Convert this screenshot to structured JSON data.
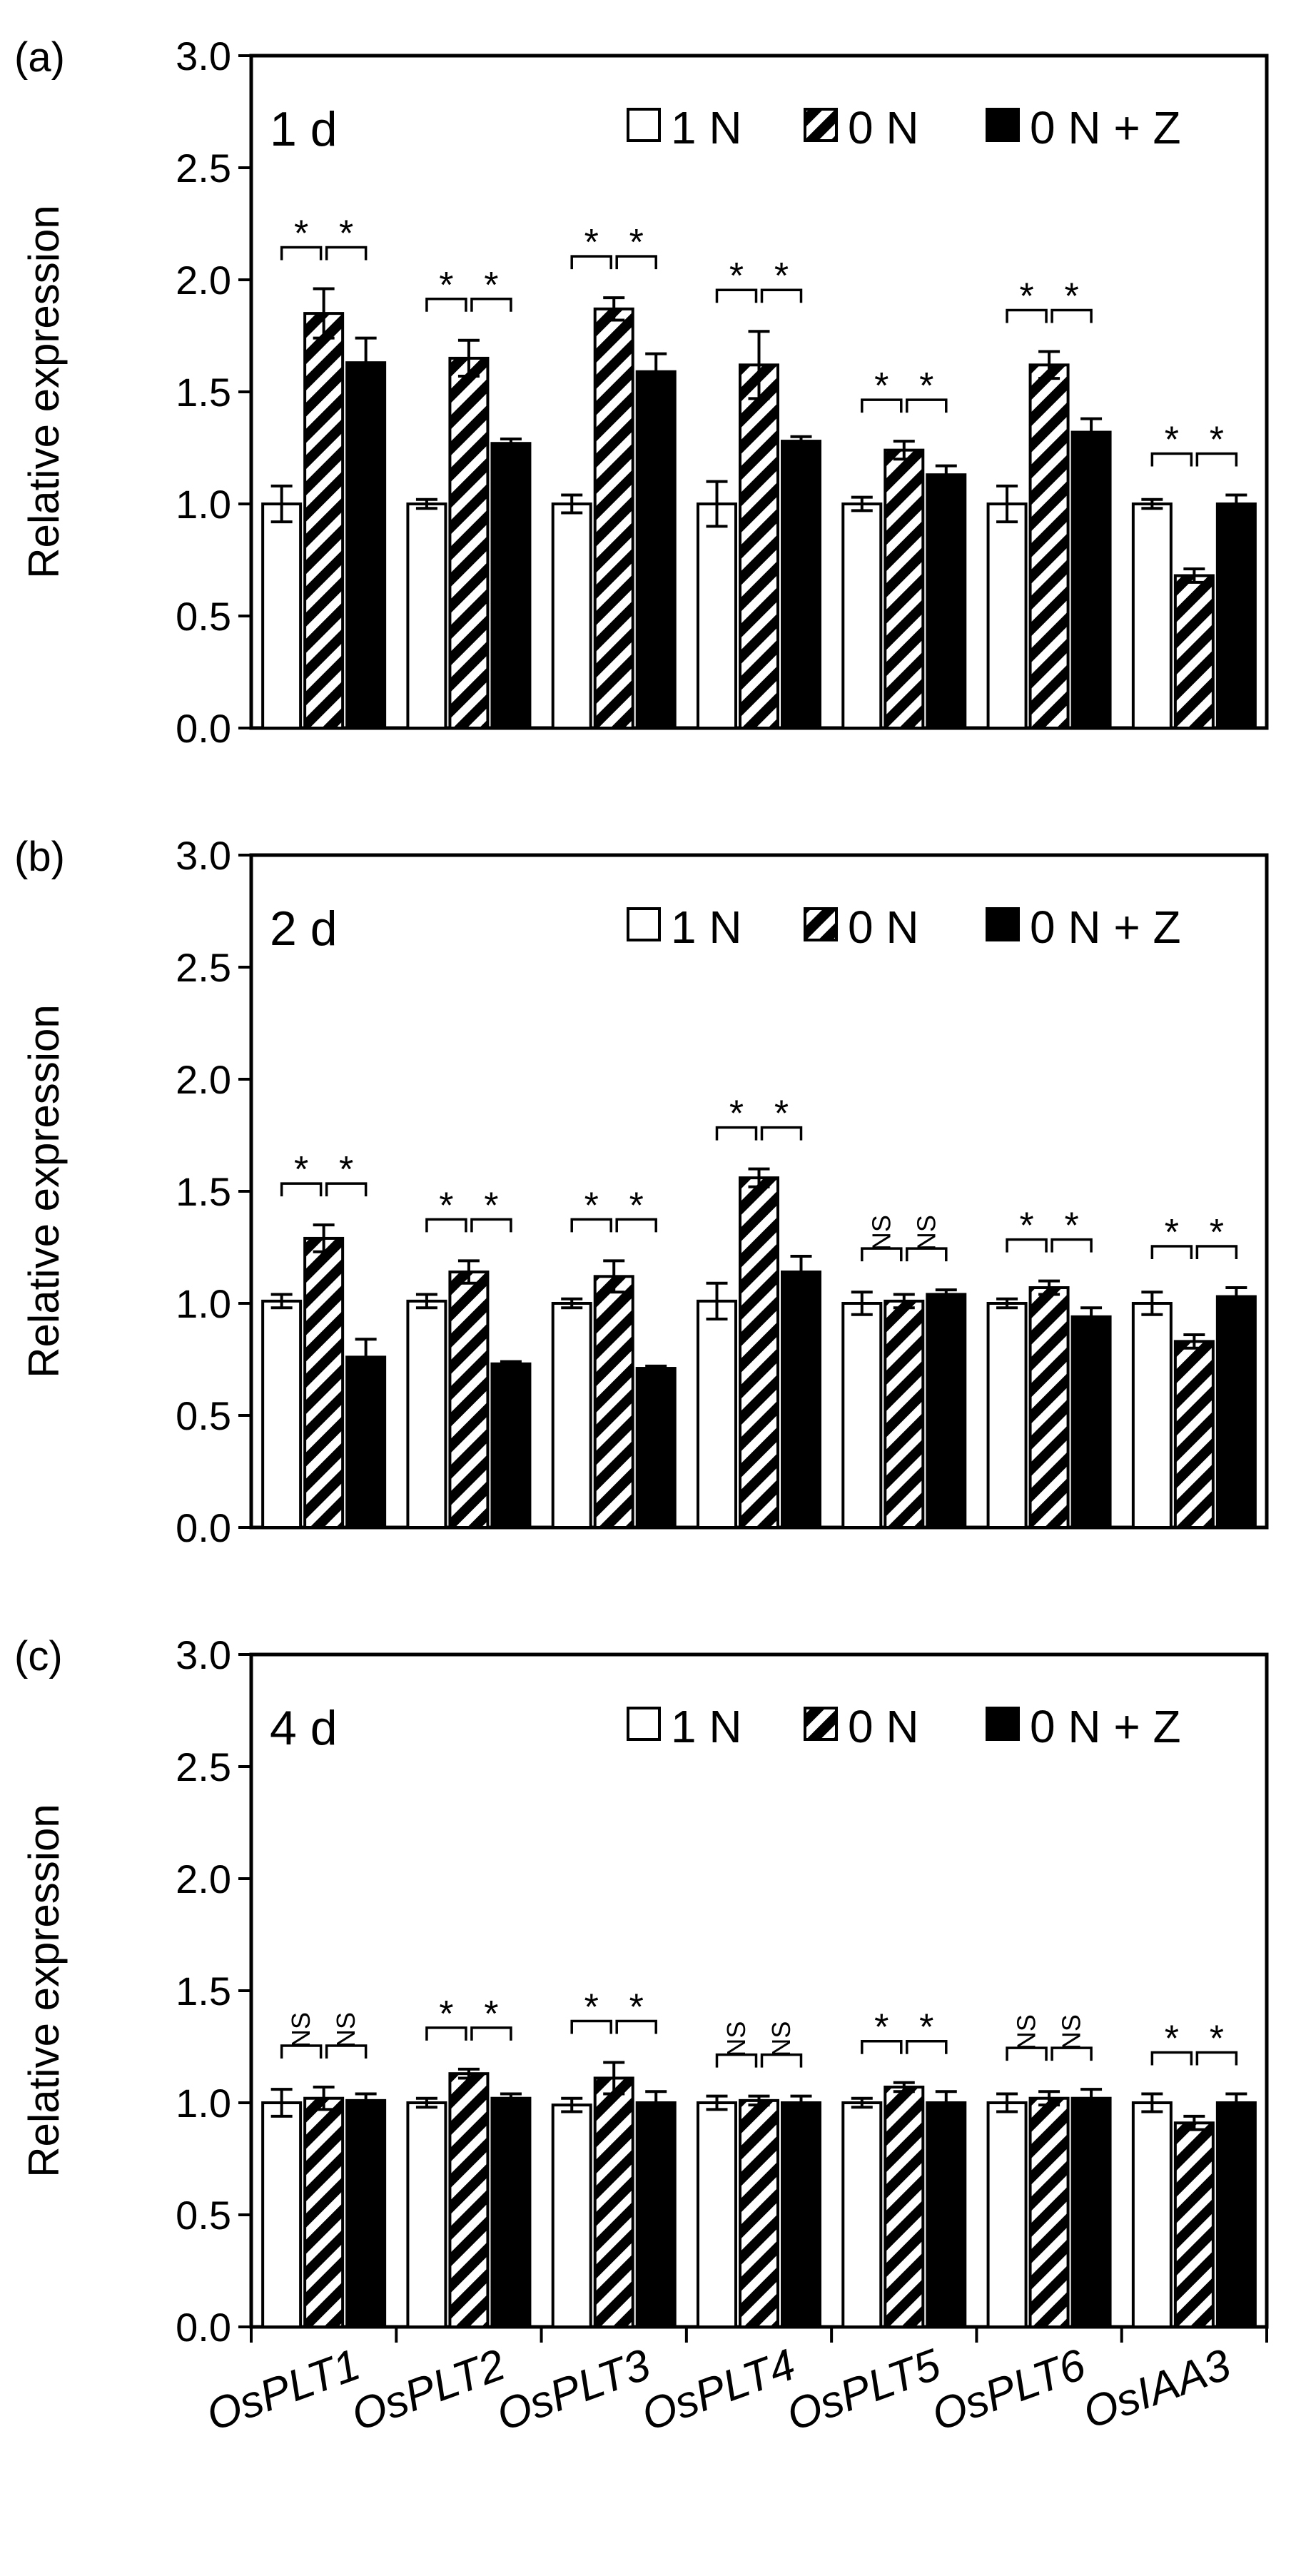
{
  "chart_data": [
    {
      "type": "bar",
      "panel_label": "(a)",
      "day_label": "1 d",
      "ylabel": "Relative expression",
      "ylim": [
        0,
        3.0
      ],
      "yticks": [
        "0.0",
        "0.5",
        "1.0",
        "1.5",
        "2.0",
        "2.5",
        "3.0"
      ],
      "categories": [
        "OsPLT1",
        "OsPLT2",
        "OsPLT3",
        "OsPLT4",
        "OsPLT5",
        "OsPLT6",
        "OsIAA3"
      ],
      "series": [
        {
          "name": "1 N",
          "values": [
            1.0,
            1.0,
            1.0,
            1.0,
            1.0,
            1.0,
            1.0
          ],
          "errors": [
            0.08,
            0.02,
            0.04,
            0.1,
            0.03,
            0.08,
            0.02
          ]
        },
        {
          "name": "0 N",
          "values": [
            1.85,
            1.65,
            1.87,
            1.62,
            1.24,
            1.62,
            0.68
          ],
          "errors": [
            0.11,
            0.08,
            0.05,
            0.15,
            0.04,
            0.06,
            0.03
          ]
        },
        {
          "name": "0 N + Z",
          "values": [
            1.63,
            1.27,
            1.59,
            1.28,
            1.13,
            1.32,
            1.0
          ],
          "errors": [
            0.11,
            0.02,
            0.08,
            0.02,
            0.04,
            0.06,
            0.04
          ]
        }
      ],
      "significance": [
        [
          "*",
          "*"
        ],
        [
          "*",
          "*"
        ],
        [
          "*",
          "*"
        ],
        [
          "*",
          "*"
        ],
        [
          "*",
          "*"
        ],
        [
          "*",
          "*"
        ],
        [
          "*",
          "*"
        ]
      ]
    },
    {
      "type": "bar",
      "panel_label": "(b)",
      "day_label": "2 d",
      "ylabel": "Relative expression",
      "ylim": [
        0,
        3.0
      ],
      "yticks": [
        "0.0",
        "0.5",
        "1.0",
        "1.5",
        "2.0",
        "2.5",
        "3.0"
      ],
      "categories": [
        "OsPLT1",
        "OsPLT2",
        "OsPLT3",
        "OsPLT4",
        "OsPLT5",
        "OsPLT6",
        "OsIAA3"
      ],
      "series": [
        {
          "name": "1 N",
          "values": [
            1.01,
            1.01,
            1.0,
            1.01,
            1.0,
            1.0,
            1.0
          ],
          "errors": [
            0.03,
            0.03,
            0.02,
            0.08,
            0.05,
            0.02,
            0.05
          ]
        },
        {
          "name": "0 N",
          "values": [
            1.29,
            1.14,
            1.12,
            1.56,
            1.01,
            1.07,
            0.83
          ],
          "errors": [
            0.06,
            0.05,
            0.07,
            0.04,
            0.03,
            0.03,
            0.03
          ]
        },
        {
          "name": "0 N + Z",
          "values": [
            0.76,
            0.73,
            0.71,
            1.14,
            1.04,
            0.94,
            1.03
          ],
          "errors": [
            0.08,
            0.01,
            0.01,
            0.07,
            0.02,
            0.04,
            0.04
          ]
        }
      ],
      "significance": [
        [
          "*",
          "*"
        ],
        [
          "*",
          "*"
        ],
        [
          "*",
          "*"
        ],
        [
          "*",
          "*"
        ],
        [
          "NS",
          "NS"
        ],
        [
          "*",
          "*"
        ],
        [
          "*",
          "*"
        ]
      ]
    },
    {
      "type": "bar",
      "panel_label": "(c)",
      "day_label": "4 d",
      "ylabel": "Relative expression",
      "ylim": [
        0,
        3.0
      ],
      "yticks": [
        "0.0",
        "0.5",
        "1.0",
        "1.5",
        "2.0",
        "2.5",
        "3.0"
      ],
      "categories": [
        "OsPLT1",
        "OsPLT2",
        "OsPLT3",
        "OsPLT4",
        "OsPLT5",
        "OsPLT6",
        "OsIAA3"
      ],
      "series": [
        {
          "name": "1 N",
          "values": [
            1.0,
            1.0,
            0.99,
            1.0,
            1.0,
            1.0,
            1.0
          ],
          "errors": [
            0.06,
            0.02,
            0.03,
            0.03,
            0.02,
            0.04,
            0.04
          ]
        },
        {
          "name": "0 N",
          "values": [
            1.02,
            1.13,
            1.11,
            1.01,
            1.07,
            1.02,
            0.91
          ],
          "errors": [
            0.05,
            0.02,
            0.07,
            0.02,
            0.02,
            0.03,
            0.03
          ]
        },
        {
          "name": "0 N + Z",
          "values": [
            1.01,
            1.02,
            1.0,
            1.0,
            1.0,
            1.02,
            1.0
          ],
          "errors": [
            0.03,
            0.02,
            0.05,
            0.03,
            0.05,
            0.04,
            0.04
          ]
        }
      ],
      "significance": [
        [
          "NS",
          "NS"
        ],
        [
          "*",
          "*"
        ],
        [
          "*",
          "*"
        ],
        [
          "NS",
          "NS"
        ],
        [
          "*",
          "*"
        ],
        [
          "NS",
          "NS"
        ],
        [
          "*",
          "*"
        ]
      ]
    }
  ],
  "colors": {
    "bar_fill_1N": "#ffffff",
    "bar_fill_0NZ": "#000000",
    "stroke": "#000000"
  }
}
